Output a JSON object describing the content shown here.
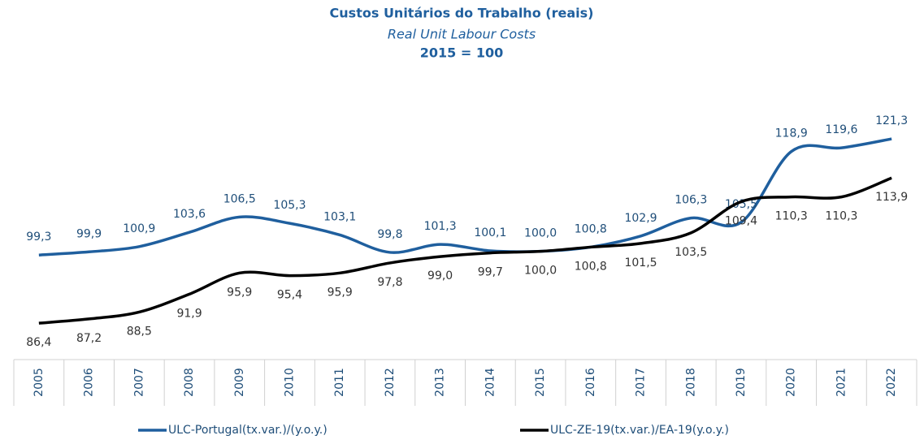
{
  "chart_data": {
    "type": "line",
    "title": "Custos Unitários do Trabalho (reais)",
    "subtitle": "Real Unit Labour Costs",
    "note": "2015 = 100",
    "categories": [
      "2005",
      "2006",
      "2007",
      "2008",
      "2009",
      "2010",
      "2011",
      "2012",
      "2013",
      "2014",
      "2015",
      "2016",
      "2017",
      "2018",
      "2019",
      "2020",
      "2021",
      "2022"
    ],
    "ylim": [
      79.5,
      125
    ],
    "legend": "bottom",
    "series": [
      {
        "name": "ULC-Portugal(tx.var.)/(y.o.y.)",
        "color": "#1f5f9e",
        "label_side": "above",
        "values": [
          99.3,
          99.9,
          100.9,
          103.6,
          106.5,
          105.3,
          103.1,
          99.8,
          101.3,
          100.1,
          100.0,
          100.8,
          102.9,
          106.3,
          105.5,
          118.9,
          119.6,
          121.3
        ],
        "value_labels": [
          "99,3",
          "99,9",
          "100,9",
          "103,6",
          "106,5",
          "105,3",
          "103,1",
          "99,8",
          "101,3",
          "100,1",
          "100,0",
          "100,8",
          "102,9",
          "106,3",
          "105,5",
          "118,9",
          "119,6",
          "121,3"
        ]
      },
      {
        "name": "ULC-ZE-19(tx.var.)/EA-19(y.o.y.)",
        "color": "#000000",
        "label_side": "below",
        "values": [
          86.4,
          87.2,
          88.5,
          91.9,
          95.9,
          95.4,
          95.9,
          97.8,
          99.0,
          99.7,
          100.0,
          100.8,
          101.5,
          103.5,
          109.4,
          110.3,
          110.3,
          113.9
        ],
        "value_labels": [
          "86,4",
          "87,2",
          "88,5",
          "91,9",
          "95,9",
          "95,4",
          "95,9",
          "97,8",
          "99,0",
          "99,7",
          "100,0",
          "100,8",
          "101,5",
          "103,5",
          "109,4",
          "110,3",
          "110,3",
          "113,9"
        ]
      }
    ]
  }
}
